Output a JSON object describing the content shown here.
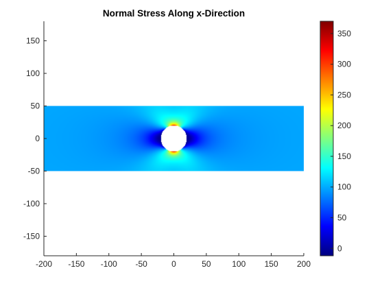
{
  "chart_data": {
    "type": "heatmap",
    "title": "Normal Stress Along x-Direction",
    "xlabel": "",
    "ylabel": "",
    "xlim": [
      -200,
      200
    ],
    "ylim": [
      -180,
      180
    ],
    "x_ticks": [
      -200,
      -150,
      -100,
      -50,
      0,
      50,
      100,
      150,
      200
    ],
    "y_ticks": [
      -150,
      -100,
      -50,
      0,
      50,
      100,
      150
    ],
    "colormap": "jet",
    "colorbar": {
      "range": [
        -12,
        370
      ],
      "ticks": [
        0,
        50,
        100,
        150,
        200,
        250,
        300,
        350
      ],
      "placement": "right"
    },
    "plate": {
      "x_range": [
        -200,
        200
      ],
      "y_range": [
        -50,
        50
      ],
      "nominal_value": 100
    },
    "hole": {
      "center": [
        0,
        0
      ],
      "radius": 20
    },
    "field_samples": [
      {
        "x": -150,
        "y": 0,
        "value": 100
      },
      {
        "x": -20,
        "y": 0,
        "value": 0
      },
      {
        "x": 20,
        "y": 0,
        "value": 0
      },
      {
        "x": 0,
        "y": 20,
        "value": 330
      },
      {
        "x": 0,
        "y": -20,
        "value": 330
      },
      {
        "x": 0,
        "y": 50,
        "value": 60
      },
      {
        "x": 0,
        "y": -50,
        "value": 60
      },
      {
        "x": -30,
        "y": 40,
        "value": 140
      },
      {
        "x": 30,
        "y": -40,
        "value": 140
      },
      {
        "x": 150,
        "y": 0,
        "value": 100
      }
    ],
    "grid": false,
    "colors": {
      "background": "#ffffff",
      "axis": "#262626"
    }
  }
}
